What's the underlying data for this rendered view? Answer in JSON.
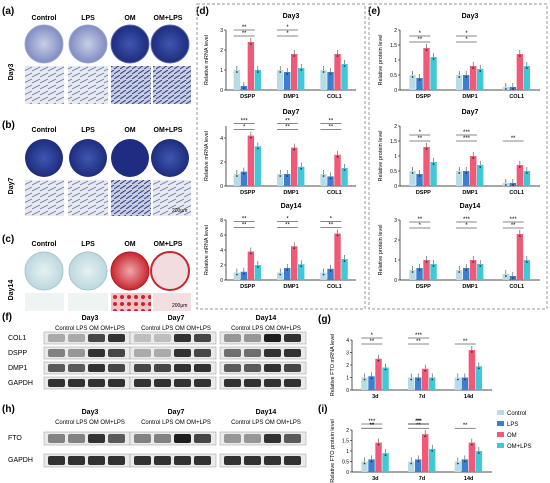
{
  "colors": {
    "control": "#b7dce8",
    "lps": "#3a7fd0",
    "om": "#f05a78",
    "om_lps": "#3fc8d8",
    "blot_dark": "#1e1e1e",
    "cv_blue": "#2c3d93",
    "ars_red": "#c8262e",
    "dash": "#9a9a9a"
  },
  "panels": {
    "a": "(a)",
    "b": "(b)",
    "c": "(c)",
    "d": "(d)",
    "e": "(e)",
    "f": "(f)",
    "g": "(g)",
    "h": "(h)",
    "i": "(i)"
  },
  "groups": [
    "Control",
    "LPS",
    "OM",
    "OM+LPS"
  ],
  "days": {
    "d3": "Day3",
    "d7": "Day7",
    "d14": "Day14"
  },
  "scalebar": "200μm",
  "blots": {
    "proteins_f": [
      "COL1",
      "DSPP",
      "DMP1",
      "GAPDH"
    ],
    "proteins_h": [
      "FTO",
      "GAPDH"
    ],
    "lane_labels": "Control LPS  OM OM+LPS"
  },
  "legend": [
    "Control",
    "LPS",
    "OM",
    "OM+LPS"
  ],
  "chart_data": [
    {
      "id": "d3",
      "panel": "d",
      "type": "bar",
      "title": "Day3",
      "ylabel": "Relative mRNA level",
      "categories": [
        "DSPP",
        "DMP1",
        "COL1"
      ],
      "ylim": [
        0,
        3
      ],
      "series": [
        {
          "name": "Control",
          "values": [
            1.0,
            1.0,
            1.0
          ]
        },
        {
          "name": "LPS",
          "values": [
            0.2,
            0.9,
            0.9
          ]
        },
        {
          "name": "OM",
          "values": [
            2.4,
            1.8,
            1.8
          ]
        },
        {
          "name": "OM+LPS",
          "values": [
            1.0,
            1.1,
            1.3
          ]
        }
      ],
      "sig": [
        "**",
        "**",
        "*",
        "*"
      ]
    },
    {
      "id": "d7",
      "panel": "d",
      "type": "bar",
      "title": "Day7",
      "ylabel": "Relative mRNA level",
      "categories": [
        "DSPP",
        "DMP1",
        "COL1"
      ],
      "ylim": [
        0,
        5
      ],
      "series": [
        {
          "name": "Control",
          "values": [
            1.0,
            1.0,
            1.0
          ]
        },
        {
          "name": "LPS",
          "values": [
            1.2,
            1.0,
            0.8
          ]
        },
        {
          "name": "OM",
          "values": [
            4.2,
            3.2,
            2.6
          ]
        },
        {
          "name": "OM+LPS",
          "values": [
            3.3,
            1.6,
            1.5
          ]
        }
      ],
      "sig": [
        "*",
        "***",
        "**",
        "**",
        "**",
        "**"
      ]
    },
    {
      "id": "d14",
      "panel": "d",
      "type": "bar",
      "title": "Day14",
      "ylabel": "Relative mRNA level",
      "categories": [
        "DSPP",
        "DMP1",
        "COL1"
      ],
      "ylim": [
        0,
        8
      ],
      "series": [
        {
          "name": "Control",
          "values": [
            1.0,
            1.0,
            1.0
          ]
        },
        {
          "name": "LPS",
          "values": [
            1.1,
            1.6,
            1.5
          ]
        },
        {
          "name": "OM",
          "values": [
            3.8,
            4.5,
            6.2
          ]
        },
        {
          "name": "OM+LPS",
          "values": [
            2.0,
            2.1,
            2.8
          ]
        }
      ],
      "sig": [
        "**",
        "**",
        "**",
        "*",
        "**",
        "*"
      ]
    },
    {
      "id": "e3",
      "panel": "e",
      "type": "bar",
      "title": "Day3",
      "ylabel": "Relative protein level",
      "categories": [
        "DSPP",
        "DMP1",
        "COL1"
      ],
      "ylim": [
        0,
        2
      ],
      "series": [
        {
          "name": "Control",
          "values": [
            0.5,
            0.5,
            0.1
          ]
        },
        {
          "name": "LPS",
          "values": [
            0.4,
            0.5,
            0.1
          ]
        },
        {
          "name": "OM",
          "values": [
            1.4,
            0.8,
            1.2
          ]
        },
        {
          "name": "OM+LPS",
          "values": [
            1.1,
            0.7,
            0.8
          ]
        }
      ],
      "sig": [
        "**",
        "*",
        "*",
        "*"
      ]
    },
    {
      "id": "e7",
      "panel": "e",
      "type": "bar",
      "title": "Day7",
      "ylabel": "Relative protein level",
      "categories": [
        "DSPP",
        "DMP1",
        "COL1"
      ],
      "ylim": [
        0,
        2
      ],
      "series": [
        {
          "name": "Control",
          "values": [
            0.5,
            0.5,
            0.1
          ]
        },
        {
          "name": "LPS",
          "values": [
            0.4,
            0.5,
            0.1
          ]
        },
        {
          "name": "OM",
          "values": [
            1.3,
            1.0,
            0.7
          ]
        },
        {
          "name": "OM+LPS",
          "values": [
            0.8,
            0.7,
            0.5
          ]
        }
      ],
      "sig": [
        "**",
        "*",
        "***",
        "***",
        "**"
      ]
    },
    {
      "id": "e14",
      "panel": "e",
      "type": "bar",
      "title": "Day14",
      "ylabel": "Relative protein level",
      "categories": [
        "DSPP",
        "DMP1",
        "COL1"
      ],
      "ylim": [
        0,
        3
      ],
      "series": [
        {
          "name": "Control",
          "values": [
            0.5,
            0.5,
            0.3
          ]
        },
        {
          "name": "LPS",
          "values": [
            0.6,
            0.6,
            0.2
          ]
        },
        {
          "name": "OM",
          "values": [
            1.0,
            1.0,
            2.3
          ]
        },
        {
          "name": "OM+LPS",
          "values": [
            0.8,
            0.8,
            1.0
          ]
        }
      ],
      "sig": [
        "*",
        "**",
        "*",
        "***",
        "**",
        "***"
      ]
    },
    {
      "id": "g",
      "panel": "g",
      "type": "bar",
      "ylabel": "Relative FTO mRNA level",
      "categories": [
        "3d",
        "7d",
        "14d"
      ],
      "ylim": [
        0,
        4
      ],
      "series": [
        {
          "name": "Control",
          "values": [
            1.0,
            1.0,
            1.0
          ]
        },
        {
          "name": "LPS",
          "values": [
            1.1,
            1.0,
            1.0
          ]
        },
        {
          "name": "OM",
          "values": [
            2.5,
            1.7,
            3.2
          ]
        },
        {
          "name": "OM+LPS",
          "values": [
            1.8,
            1.0,
            1.9
          ]
        }
      ],
      "sig": [
        "**",
        "*",
        "**",
        "***",
        "**"
      ]
    },
    {
      "id": "i",
      "panel": "i",
      "type": "bar",
      "ylabel": "Relative FTO protein level",
      "categories": [
        "3d",
        "7d",
        "14d"
      ],
      "ylim": [
        0,
        2
      ],
      "series": [
        {
          "name": "Control",
          "values": [
            0.5,
            0.5,
            0.5
          ]
        },
        {
          "name": "LPS",
          "values": [
            0.6,
            0.6,
            0.6
          ]
        },
        {
          "name": "OM",
          "values": [
            1.4,
            1.8,
            1.4
          ]
        },
        {
          "name": "OM+LPS",
          "values": [
            0.9,
            1.1,
            1.0
          ]
        }
      ],
      "sig": [
        "**",
        "***",
        "**",
        "***",
        "**",
        "**",
        "**"
      ]
    }
  ]
}
